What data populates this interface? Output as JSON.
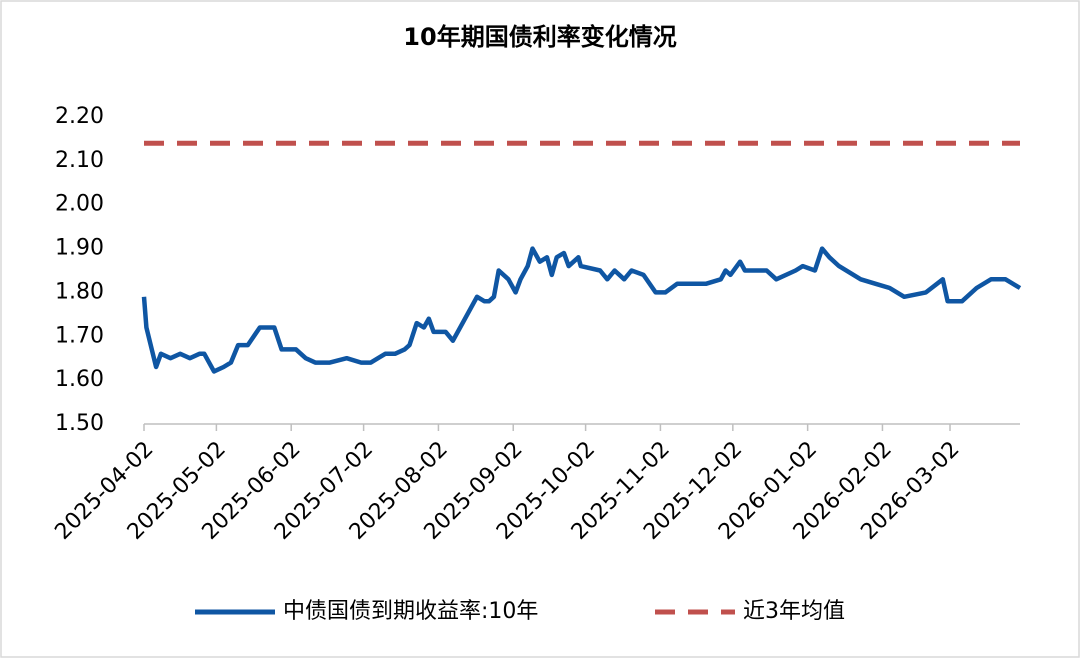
{
  "chart_data": {
    "type": "line",
    "title": "10年期国债利率变化情况",
    "series": [
      {
        "name": "中债国债到期收益率:10年",
        "color": "#0f56a3",
        "dash": false,
        "x": [
          "2025-04-02",
          "2025-04-03",
          "2025-04-07",
          "2025-04-09",
          "2025-04-13",
          "2025-04-17",
          "2025-04-21",
          "2025-04-25",
          "2025-04-27",
          "2025-05-01",
          "2025-05-05",
          "2025-05-08",
          "2025-05-11",
          "2025-05-15",
          "2025-05-20",
          "2025-05-26",
          "2025-05-29",
          "2025-06-04",
          "2025-06-08",
          "2025-06-12",
          "2025-06-18",
          "2025-06-25",
          "2025-07-01",
          "2025-07-05",
          "2025-07-11",
          "2025-07-15",
          "2025-07-19",
          "2025-07-21",
          "2025-07-24",
          "2025-07-27",
          "2025-07-29",
          "2025-07-31",
          "2025-08-05",
          "2025-08-08",
          "2025-08-13",
          "2025-08-18",
          "2025-08-21",
          "2025-08-23",
          "2025-08-25",
          "2025-08-27",
          "2025-08-31",
          "2025-09-03",
          "2025-09-05",
          "2025-09-08",
          "2025-09-10",
          "2025-09-13",
          "2025-09-16",
          "2025-09-18",
          "2025-09-20",
          "2025-09-23",
          "2025-09-25",
          "2025-09-29",
          "2025-09-30",
          "2025-10-08",
          "2025-10-11",
          "2025-10-14",
          "2025-10-18",
          "2025-10-21",
          "2025-10-26",
          "2025-10-31",
          "2025-11-04",
          "2025-11-09",
          "2025-11-15",
          "2025-11-21",
          "2025-11-27",
          "2025-11-29",
          "2025-12-01",
          "2025-12-05",
          "2025-12-07",
          "2025-12-16",
          "2025-12-20",
          "2025-12-28",
          "2025-12-31",
          "2026-01-05",
          "2026-01-08",
          "2026-01-11",
          "2026-01-15",
          "2026-01-24",
          "2026-01-30",
          "2026-02-05",
          "2026-02-11",
          "2026-02-20",
          "2026-02-27",
          "2026-03-01",
          "2026-03-07",
          "2026-03-13",
          "2026-03-19",
          "2026-03-25",
          "2026-03-31"
        ],
        "values": [
          1.79,
          1.72,
          1.63,
          1.66,
          1.65,
          1.66,
          1.65,
          1.66,
          1.66,
          1.62,
          1.63,
          1.64,
          1.68,
          1.68,
          1.72,
          1.72,
          1.67,
          1.67,
          1.65,
          1.64,
          1.64,
          1.65,
          1.64,
          1.64,
          1.66,
          1.66,
          1.67,
          1.68,
          1.73,
          1.72,
          1.74,
          1.71,
          1.71,
          1.69,
          1.74,
          1.79,
          1.78,
          1.78,
          1.79,
          1.85,
          1.83,
          1.8,
          1.83,
          1.86,
          1.9,
          1.87,
          1.88,
          1.84,
          1.88,
          1.89,
          1.86,
          1.88,
          1.86,
          1.85,
          1.83,
          1.85,
          1.83,
          1.85,
          1.84,
          1.8,
          1.8,
          1.82,
          1.82,
          1.82,
          1.83,
          1.85,
          1.84,
          1.87,
          1.85,
          1.85,
          1.83,
          1.85,
          1.86,
          1.85,
          1.9,
          1.88,
          1.86,
          1.83,
          1.82,
          1.81,
          1.79,
          1.8,
          1.83,
          1.78,
          1.78,
          1.81,
          1.83,
          1.83,
          1.81
        ]
      },
      {
        "name": "近3年均值",
        "color": "#c0504d",
        "dash": true,
        "x": [
          "2025-04-02",
          "2026-03-31"
        ],
        "values": [
          2.14,
          2.14
        ]
      }
    ],
    "xlim": [
      "2025-04-02",
      "2026-03-31"
    ],
    "xticks": [
      "2025-04-02",
      "2025-05-02",
      "2025-06-02",
      "2025-07-02",
      "2025-08-02",
      "2025-09-02",
      "2025-10-02",
      "2025-11-02",
      "2025-12-02",
      "2026-01-02",
      "2026-02-02",
      "2026-03-02"
    ],
    "ylim": [
      1.5,
      2.2
    ],
    "yticks": [
      {
        "value": 1.5,
        "label": "1.50"
      },
      {
        "value": 1.6,
        "label": "1.60"
      },
      {
        "value": 1.7,
        "label": "1.70"
      },
      {
        "value": 1.8,
        "label": "1.80"
      },
      {
        "value": 1.9,
        "label": "1.90"
      },
      {
        "value": 2.0,
        "label": "2.00"
      },
      {
        "value": 2.1,
        "label": "2.10"
      },
      {
        "value": 2.2,
        "label": "2.20"
      }
    ],
    "grid": false,
    "legend": "bottom"
  }
}
